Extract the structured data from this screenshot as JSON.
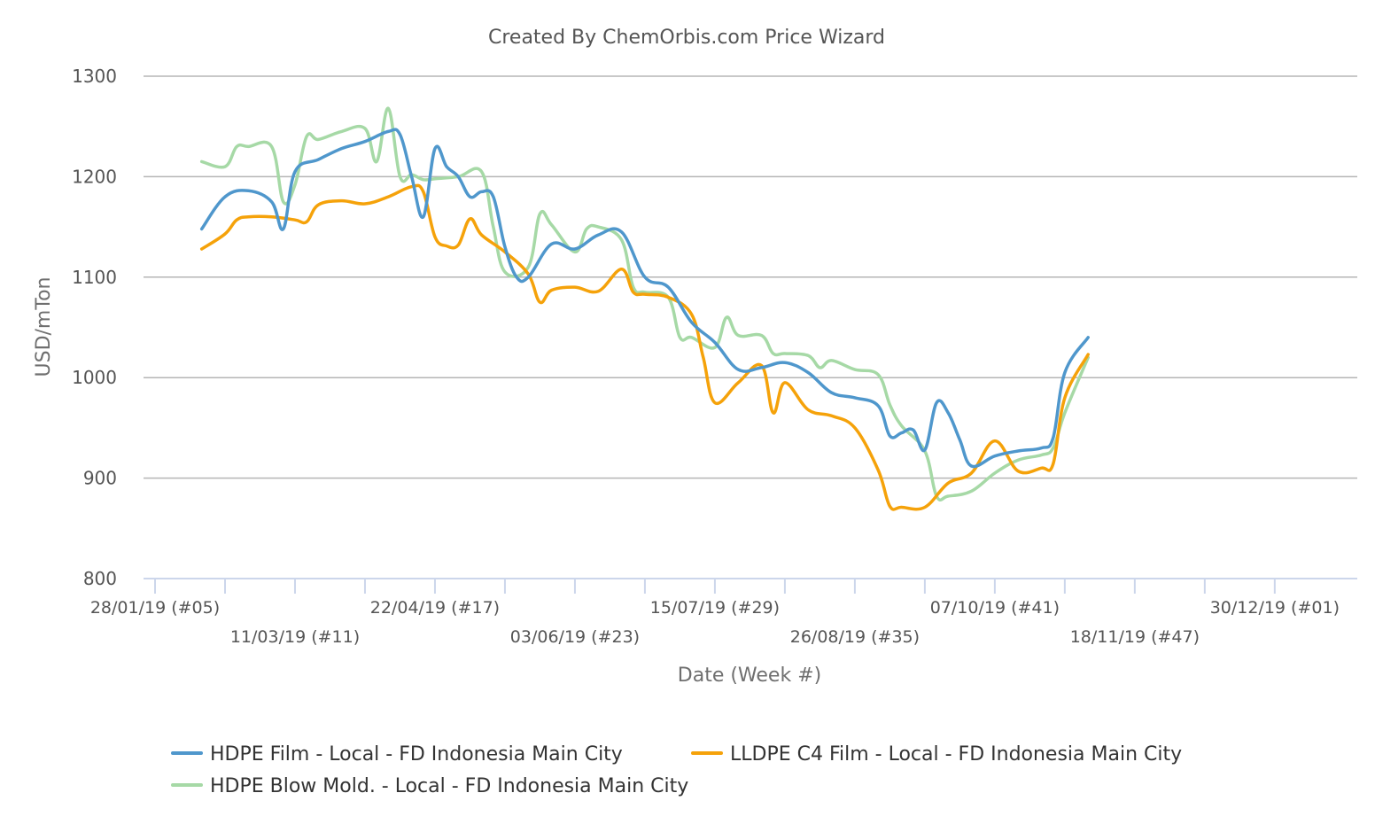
{
  "chart_data": {
    "type": "line",
    "title": "Created By ChemOrbis.com Price Wizard",
    "xlabel": "Date (Week #)",
    "ylabel": "USD/mTon",
    "ylim": [
      800,
      1300
    ],
    "yticks": [
      800,
      900,
      1000,
      1100,
      1200,
      1300
    ],
    "grid": true,
    "legend_position": "bottom",
    "week_start": 5,
    "x_tick_labels": [
      {
        "week": 5,
        "label": "28/01/19 (#05)"
      },
      {
        "week": 11,
        "label": "11/03/19 (#11)"
      },
      {
        "week": 17,
        "label": "22/04/19 (#17)"
      },
      {
        "week": 23,
        "label": "03/06/19 (#23)"
      },
      {
        "week": 29,
        "label": "15/07/19 (#29)"
      },
      {
        "week": 35,
        "label": "26/08/19 (#35)"
      },
      {
        "week": 41,
        "label": "07/10/19 (#41)"
      },
      {
        "week": 47,
        "label": "18/11/19 (#47)"
      },
      {
        "week": 53,
        "label": "30/12/19 (#01)"
      }
    ],
    "series": [
      {
        "name": "HDPE Film - Local - FD Indonesia Main City",
        "color": "#4f97cc",
        "values": [
          [
            7.0,
            1148
          ],
          [
            8.0,
            1180
          ],
          [
            9.0,
            1186
          ],
          [
            10.0,
            1175
          ],
          [
            10.5,
            1148
          ],
          [
            11.0,
            1205
          ],
          [
            12.0,
            1217
          ],
          [
            13.0,
            1228
          ],
          [
            14.0,
            1235
          ],
          [
            15.0,
            1245
          ],
          [
            15.5,
            1242
          ],
          [
            16.0,
            1200
          ],
          [
            16.5,
            1160
          ],
          [
            17.0,
            1228
          ],
          [
            17.5,
            1210
          ],
          [
            18.0,
            1200
          ],
          [
            18.5,
            1180
          ],
          [
            19.0,
            1185
          ],
          [
            19.5,
            1180
          ],
          [
            20.0,
            1130
          ],
          [
            20.5,
            1100
          ],
          [
            21.0,
            1100
          ],
          [
            22.0,
            1133
          ],
          [
            23.0,
            1128
          ],
          [
            24.0,
            1142
          ],
          [
            25.0,
            1145
          ],
          [
            26.0,
            1100
          ],
          [
            27.0,
            1090
          ],
          [
            28.0,
            1055
          ],
          [
            29.0,
            1035
          ],
          [
            30.0,
            1008
          ],
          [
            31.0,
            1010
          ],
          [
            32.0,
            1015
          ],
          [
            33.0,
            1005
          ],
          [
            34.0,
            985
          ],
          [
            35.0,
            980
          ],
          [
            36.0,
            972
          ],
          [
            36.5,
            942
          ],
          [
            37.0,
            945
          ],
          [
            37.5,
            948
          ],
          [
            38.0,
            928
          ],
          [
            38.5,
            975
          ],
          [
            39.0,
            965
          ],
          [
            39.5,
            938
          ],
          [
            40.0,
            912
          ],
          [
            41.0,
            922
          ],
          [
            42.0,
            927
          ],
          [
            43.0,
            930
          ],
          [
            43.5,
            940
          ],
          [
            44.0,
            1005
          ],
          [
            45.0,
            1040
          ]
        ]
      },
      {
        "name": "LLDPE C4 Film - Local - FD Indonesia Main City",
        "color": "#f5a20a",
        "values": [
          [
            7.0,
            1128
          ],
          [
            8.0,
            1143
          ],
          [
            8.5,
            1157
          ],
          [
            9.0,
            1160
          ],
          [
            10.0,
            1160
          ],
          [
            11.0,
            1157
          ],
          [
            11.5,
            1155
          ],
          [
            12.0,
            1172
          ],
          [
            13.0,
            1176
          ],
          [
            14.0,
            1173
          ],
          [
            15.0,
            1180
          ],
          [
            16.0,
            1190
          ],
          [
            16.5,
            1185
          ],
          [
            17.0,
            1140
          ],
          [
            17.5,
            1131
          ],
          [
            18.0,
            1132
          ],
          [
            18.5,
            1158
          ],
          [
            19.0,
            1142
          ],
          [
            20.0,
            1125
          ],
          [
            21.0,
            1103
          ],
          [
            21.5,
            1075
          ],
          [
            22.0,
            1087
          ],
          [
            23.0,
            1090
          ],
          [
            24.0,
            1086
          ],
          [
            25.0,
            1108
          ],
          [
            25.5,
            1085
          ],
          [
            26.0,
            1083
          ],
          [
            27.0,
            1080
          ],
          [
            28.0,
            1063
          ],
          [
            28.5,
            1020
          ],
          [
            29.0,
            975
          ],
          [
            30.0,
            995
          ],
          [
            31.0,
            1012
          ],
          [
            31.5,
            965
          ],
          [
            32.0,
            995
          ],
          [
            33.0,
            968
          ],
          [
            34.0,
            962
          ],
          [
            35.0,
            950
          ],
          [
            36.0,
            908
          ],
          [
            36.5,
            872
          ],
          [
            37.0,
            871
          ],
          [
            38.0,
            871
          ],
          [
            39.0,
            895
          ],
          [
            40.0,
            905
          ],
          [
            41.0,
            937
          ],
          [
            42.0,
            907
          ],
          [
            43.0,
            910
          ],
          [
            43.5,
            914
          ],
          [
            44.0,
            980
          ],
          [
            45.0,
            1023
          ]
        ]
      },
      {
        "name": "HDPE Blow Mold. - Local - FD Indonesia Main City",
        "color": "#a6d9a6",
        "values": [
          [
            7.0,
            1215
          ],
          [
            8.0,
            1210
          ],
          [
            8.5,
            1230
          ],
          [
            9.0,
            1230
          ],
          [
            10.0,
            1230
          ],
          [
            10.5,
            1175
          ],
          [
            11.0,
            1192
          ],
          [
            11.5,
            1240
          ],
          [
            12.0,
            1237
          ],
          [
            13.0,
            1245
          ],
          [
            14.0,
            1248
          ],
          [
            14.5,
            1215
          ],
          [
            15.0,
            1268
          ],
          [
            15.5,
            1200
          ],
          [
            16.0,
            1202
          ],
          [
            16.5,
            1197
          ],
          [
            17.0,
            1198
          ],
          [
            18.0,
            1200
          ],
          [
            19.0,
            1205
          ],
          [
            19.5,
            1150
          ],
          [
            20.0,
            1105
          ],
          [
            21.0,
            1110
          ],
          [
            21.5,
            1163
          ],
          [
            22.0,
            1152
          ],
          [
            23.0,
            1125
          ],
          [
            23.5,
            1148
          ],
          [
            24.0,
            1150
          ],
          [
            25.0,
            1137
          ],
          [
            25.5,
            1090
          ],
          [
            26.0,
            1085
          ],
          [
            27.0,
            1080
          ],
          [
            27.5,
            1040
          ],
          [
            28.0,
            1040
          ],
          [
            29.0,
            1030
          ],
          [
            29.5,
            1060
          ],
          [
            30.0,
            1042
          ],
          [
            31.0,
            1042
          ],
          [
            31.5,
            1024
          ],
          [
            32.0,
            1024
          ],
          [
            33.0,
            1022
          ],
          [
            33.5,
            1010
          ],
          [
            34.0,
            1017
          ],
          [
            35.0,
            1008
          ],
          [
            36.0,
            1003
          ],
          [
            36.5,
            973
          ],
          [
            37.0,
            952
          ],
          [
            38.0,
            927
          ],
          [
            38.5,
            882
          ],
          [
            39.0,
            882
          ],
          [
            40.0,
            887
          ],
          [
            41.0,
            905
          ],
          [
            42.0,
            918
          ],
          [
            43.0,
            923
          ],
          [
            43.5,
            930
          ],
          [
            44.0,
            965
          ],
          [
            45.0,
            1020
          ]
        ]
      }
    ]
  }
}
